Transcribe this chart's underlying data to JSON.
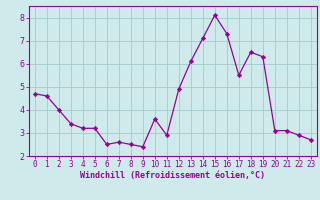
{
  "x": [
    0,
    1,
    2,
    3,
    4,
    5,
    6,
    7,
    8,
    9,
    10,
    11,
    12,
    13,
    14,
    15,
    16,
    17,
    18,
    19,
    20,
    21,
    22,
    23
  ],
  "y": [
    4.7,
    4.6,
    4.0,
    3.4,
    3.2,
    3.2,
    2.5,
    2.6,
    2.5,
    2.4,
    3.6,
    2.9,
    4.9,
    6.1,
    7.1,
    8.1,
    7.3,
    5.5,
    6.5,
    6.3,
    3.1,
    3.1,
    2.9,
    2.7
  ],
  "line_color": "#990099",
  "marker": "D",
  "marker_size": 2.2,
  "bg_color": "#ceeaea",
  "grid_color": "#aacece",
  "xlabel": "Windchill (Refroidissement éolien,°C)",
  "xlabel_color": "#990099",
  "tick_color": "#990099",
  "ylim": [
    2.0,
    8.5
  ],
  "xlim": [
    -0.5,
    23.5
  ],
  "yticks": [
    2,
    3,
    4,
    5,
    6,
    7,
    8
  ],
  "xticks": [
    0,
    1,
    2,
    3,
    4,
    5,
    6,
    7,
    8,
    9,
    10,
    11,
    12,
    13,
    14,
    15,
    16,
    17,
    18,
    19,
    20,
    21,
    22,
    23
  ],
  "spine_color": "#990099",
  "tick_fontsize": 5.5,
  "xlabel_fontsize": 6.0
}
